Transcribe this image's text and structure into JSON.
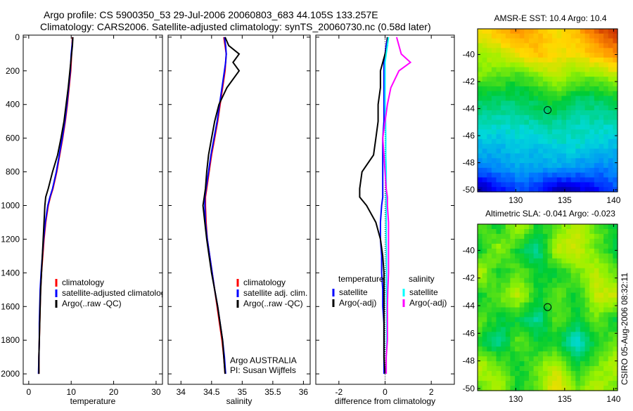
{
  "chart_data": {
    "title_line1": "Argo profile: CS 5900350_53 29-Jul-2006 20060803_683 44.105S 133.257E",
    "title_line2": "Climatology: CARS2006. Satellite-adjusted climatology: synTS_20060730.nc (0.58d later)",
    "depth_axis": {
      "ylim": [
        0,
        2000
      ],
      "ticks": [
        0,
        200,
        400,
        600,
        800,
        1000,
        1200,
        1400,
        1600,
        1800,
        2000
      ],
      "reversed": true
    },
    "depths": [
      0,
      50,
      100,
      150,
      200,
      300,
      400,
      500,
      600,
      700,
      800,
      900,
      950,
      1000,
      1100,
      1200,
      1300,
      1400,
      1500,
      1600,
      1700,
      1800,
      1900,
      2000
    ],
    "panels": [
      {
        "type": "line",
        "xlabel": "temperature",
        "xlim": [
          -1.3,
          31.5
        ],
        "xticks": [
          0,
          10,
          20,
          30
        ],
        "legend": [
          "climatology",
          "satellite-adjusted climatology",
          "Argo(..raw -QC)"
        ],
        "series": [
          {
            "name": "climatology",
            "color": "#ff0000",
            "values": [
              10.3,
              10.2,
              10.1,
              10.0,
              9.9,
              9.5,
              9.1,
              8.6,
              8.0,
              7.3,
              6.6,
              5.7,
              5.1,
              4.6,
              4.0,
              3.6,
              3.3,
              3.0,
              2.8,
              2.7,
              2.6,
              2.5,
              2.4,
              2.4
            ]
          },
          {
            "name": "satellite-adjusted climatology",
            "color": "#0000ff",
            "values": [
              10.4,
              10.2,
              10.0,
              9.9,
              9.8,
              9.4,
              9.0,
              8.5,
              7.9,
              7.2,
              6.5,
              5.6,
              5.0,
              4.5,
              3.9,
              3.5,
              3.2,
              2.9,
              2.7,
              2.6,
              2.5,
              2.5,
              2.4,
              2.3
            ]
          },
          {
            "name": "Argo(..raw -QC)",
            "color": "#000000",
            "values": [
              10.4,
              10.3,
              10.1,
              9.9,
              9.7,
              9.3,
              8.8,
              8.3,
              7.6,
              6.8,
              5.6,
              4.6,
              4.0,
              3.8,
              3.6,
              3.4,
              3.2,
              3.0,
              2.8,
              2.7,
              2.6,
              2.5,
              2.4,
              2.4
            ]
          }
        ]
      },
      {
        "type": "line",
        "xlabel": "salinity",
        "xlim": [
          33.79,
          36.11
        ],
        "xticks": [
          34,
          34.5,
          35,
          35.5,
          36
        ],
        "legend": [
          "climatology",
          "satellite adj. clim.",
          "Argo(..raw -QC)"
        ],
        "annotation": [
          "Argo AUSTRALIA",
          "PI: Susan Wijffels"
        ],
        "series": [
          {
            "name": "climatology",
            "color": "#ff0000",
            "values": [
              34.7,
              34.72,
              34.74,
              34.73,
              34.72,
              34.68,
              34.64,
              34.6,
              34.55,
              34.5,
              34.46,
              34.42,
              34.4,
              34.4,
              34.41,
              34.43,
              34.47,
              34.51,
              34.55,
              34.59,
              34.63,
              34.67,
              34.7,
              34.72
            ]
          },
          {
            "name": "satellite adj. clim.",
            "color": "#0000ff",
            "values": [
              34.71,
              34.73,
              34.74,
              34.73,
              34.71,
              34.67,
              34.63,
              34.59,
              34.54,
              34.49,
              34.45,
              34.41,
              34.39,
              34.39,
              34.4,
              34.43,
              34.47,
              34.51,
              34.55,
              34.6,
              34.64,
              34.68,
              34.71,
              34.73
            ]
          },
          {
            "name": "Argo(..raw -QC)",
            "color": "#000000",
            "values": [
              34.72,
              34.78,
              34.95,
              34.85,
              34.95,
              34.75,
              34.62,
              34.55,
              34.5,
              34.45,
              34.42,
              34.4,
              34.38,
              34.36,
              34.39,
              34.42,
              34.46,
              34.5,
              34.55,
              34.6,
              34.64,
              34.68,
              34.7,
              34.72
            ]
          }
        ]
      },
      {
        "type": "line",
        "xlabel": "difference from climatology",
        "xlim": [
          -3,
          3
        ],
        "xticks": [
          -2,
          0,
          2
        ],
        "legend_headers": [
          "temperature",
          "salinity"
        ],
        "legend": [
          "satellite",
          "Argo(-adj)",
          "satellite",
          "Argo(-adj)"
        ],
        "series": [
          {
            "name": "temperature satellite",
            "color": "#0000ff",
            "values": [
              0.1,
              0.05,
              0,
              -0.05,
              -0.05,
              -0.05,
              -0.05,
              -0.05,
              -0.1,
              -0.1,
              -0.1,
              -0.1,
              -0.1,
              -0.15,
              -0.2,
              -0.2,
              -0.15,
              -0.15,
              -0.1,
              -0.1,
              -0.05,
              -0.05,
              -0.05,
              -0.05
            ]
          },
          {
            "name": "temperature Argo(-adj)",
            "color": "#000000",
            "values": [
              0.1,
              0.1,
              0.0,
              -0.1,
              -0.2,
              -0.2,
              -0.3,
              -0.3,
              -0.4,
              -0.5,
              -1.0,
              -1.1,
              -1.1,
              -0.8,
              -0.4,
              -0.2,
              -0.1,
              -0.05,
              -0.05,
              -0.05,
              -0.05,
              -0.05,
              -0.05,
              0
            ]
          },
          {
            "name": "salinity satellite",
            "color": "#00ffff",
            "values": [
              0.15,
              0.1,
              0.05,
              0.0,
              0.0,
              0.0,
              0.0,
              0.02,
              0.03,
              0.03,
              0.05,
              0.05,
              0.05,
              0.05,
              0.05,
              0.05,
              0.06,
              0.06,
              0.06,
              0.07,
              0.07,
              0.07,
              0.05,
              0.05
            ]
          },
          {
            "name": "salinity Argo(-adj)",
            "color": "#ff00ff",
            "values": [
              0.5,
              0.6,
              0.7,
              1.1,
              0.6,
              0.25,
              0.1,
              0.0,
              -0.1,
              -0.05,
              0.0,
              0.05,
              0.1,
              0.1,
              0.15,
              0.15,
              0.15,
              0.15,
              0.12,
              0.1,
              0.1,
              0.1,
              0.05,
              0.05
            ]
          }
        ]
      }
    ],
    "maps": [
      {
        "type": "heatmap",
        "title": "AMSR-E SST: 10.4  Argo: 10.4",
        "xlim": [
          126.1,
          140.4
        ],
        "ylim": [
          -50.15,
          -38.1
        ],
        "xticks": [
          130,
          135,
          140
        ],
        "yticks": [
          -40,
          -42,
          -44,
          -46,
          -48,
          -50
        ],
        "marker": {
          "lon": 133.257,
          "lat": -44.105
        },
        "crange": [
          7.5,
          15
        ],
        "grid": [
          [
            13,
            13.5,
            14,
            13.5,
            13,
            13.5,
            14.5,
            15
          ],
          [
            12.3,
            12.5,
            13,
            13.5,
            13,
            13,
            13.5,
            14
          ],
          [
            12,
            11.8,
            11.5,
            12,
            12.5,
            12,
            12,
            12.5
          ],
          [
            11,
            11,
            11,
            11.2,
            11.5,
            11,
            11,
            11.2
          ],
          [
            10.6,
            10.5,
            10.5,
            10.7,
            10.7,
            10.5,
            10.6,
            10.5
          ],
          [
            10,
            10,
            10.2,
            10.1,
            10.3,
            10.4,
            10.2,
            10
          ],
          [
            9.5,
            9.6,
            9.8,
            9.7,
            9.8,
            9.6,
            9.5,
            9.5
          ],
          [
            7.8,
            8.5,
            9,
            8.8,
            7.9,
            8.2,
            8.5,
            9
          ]
        ]
      },
      {
        "type": "heatmap",
        "title": "Altimetric SLA: -0.041  Argo: -0.023",
        "xlim": [
          126.1,
          140.4
        ],
        "ylim": [
          -50.15,
          -38.1
        ],
        "xticks": [
          130,
          135,
          140
        ],
        "yticks": [
          -40,
          -42,
          -44,
          -46,
          -48,
          -50
        ],
        "marker": {
          "lon": 133.257,
          "lat": -44.105
        },
        "crange": [
          -0.3,
          0.3
        ],
        "grid": [
          [
            0.05,
            0.0,
            0.1,
            0.0,
            0.05,
            0.1,
            0.05,
            0.0
          ],
          [
            0.0,
            0.08,
            0.0,
            -0.05,
            0.1,
            0.12,
            0.05,
            0.0
          ],
          [
            0.1,
            0.0,
            0.05,
            0.0,
            0.0,
            0.05,
            0.1,
            0.05
          ],
          [
            0.0,
            0.05,
            0.1,
            0.0,
            0.05,
            0.0,
            0.1,
            0.12
          ],
          [
            0.05,
            0.0,
            0.0,
            -0.05,
            0.05,
            0.0,
            0.05,
            0.0
          ],
          [
            0.0,
            -0.05,
            0.05,
            0.0,
            0.0,
            -0.08,
            0.0,
            0.05
          ],
          [
            0.1,
            0.05,
            0.0,
            0.05,
            0.1,
            0.0,
            0.05,
            0.1
          ],
          [
            0.05,
            0.1,
            0.0,
            0.05,
            0.15,
            0.05,
            0.1,
            0.05
          ]
        ]
      }
    ],
    "footer": "CSIRO 05-Aug-2006 08:32:11"
  }
}
